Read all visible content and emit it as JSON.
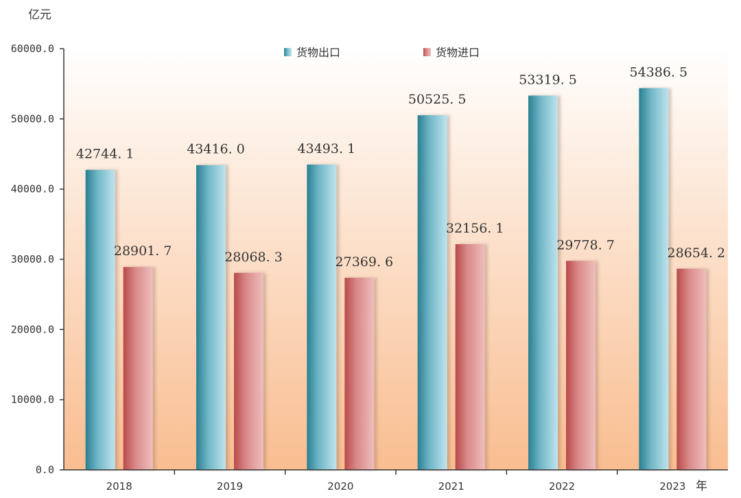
{
  "chart_data": {
    "type": "bar",
    "ylabel": "亿元",
    "xlabel": "年",
    "ylim": [
      0,
      60000
    ],
    "ytick_step": 10000,
    "ytick_labels": [
      "0.0",
      "10000.0",
      "20000.0",
      "30000.0",
      "40000.0",
      "50000.0",
      "60000.0"
    ],
    "categories": [
      "2018",
      "2019",
      "2020",
      "2021",
      "2022",
      "2023"
    ],
    "legend_position": "top-center",
    "grid": false,
    "series": [
      {
        "name": "货物出口",
        "color": "#5aa6b8",
        "values": [
          42744.1,
          43416.0,
          43493.1,
          50525.5,
          53319.5,
          54386.5
        ],
        "labels": [
          "42744. 1",
          "43416. 0",
          "43493. 1",
          "50525. 5",
          "53319. 5",
          "54386. 5"
        ]
      },
      {
        "name": "货物进口",
        "color": "#c96a6a",
        "values": [
          28901.7,
          28068.3,
          27369.6,
          32156.1,
          29778.7,
          28654.2
        ],
        "labels": [
          "28901. 7",
          "28068. 3",
          "27369. 6",
          "32156. 1",
          "29778. 7",
          "28654. 2"
        ]
      }
    ]
  }
}
